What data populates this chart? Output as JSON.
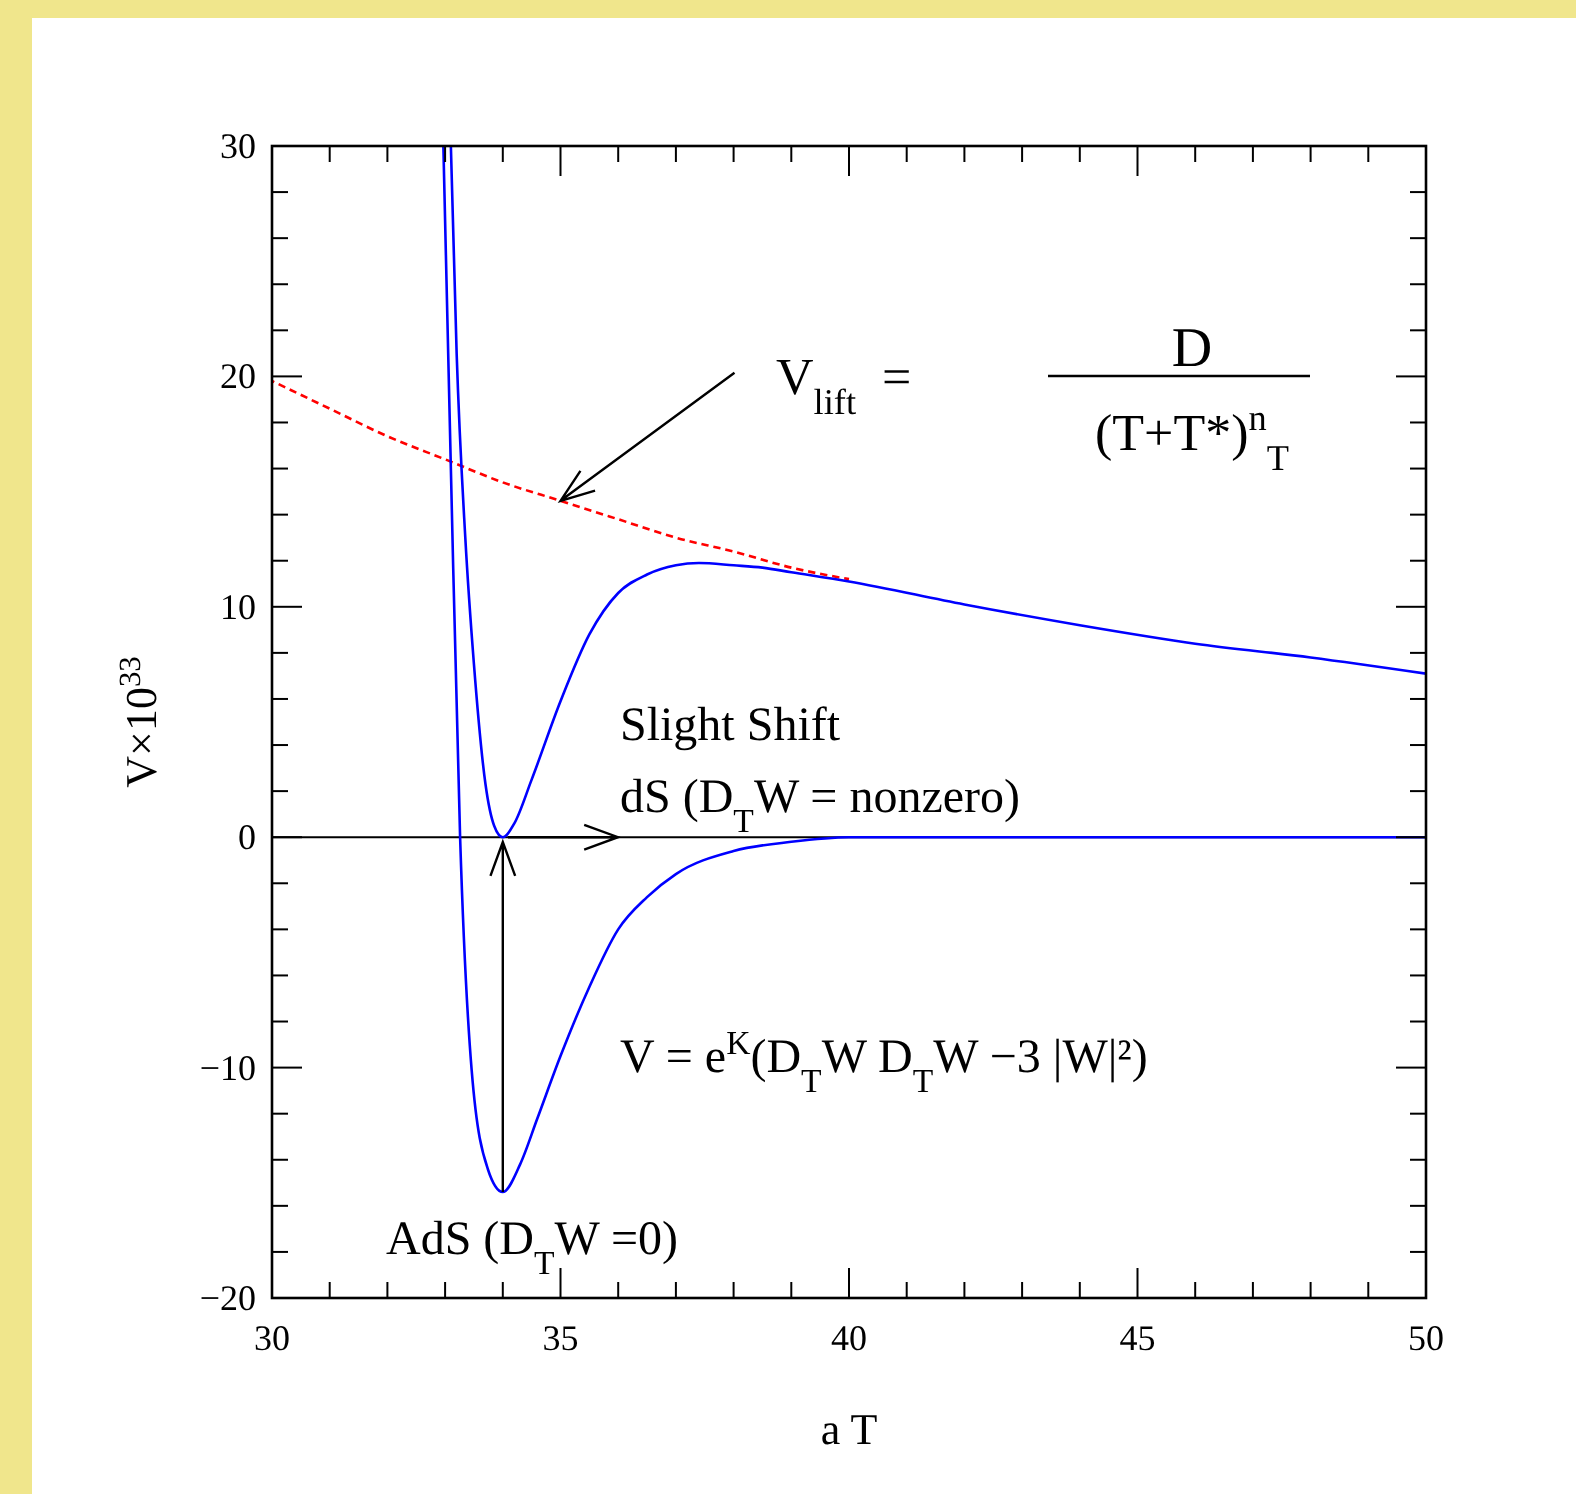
{
  "chart_data": {
    "type": "line",
    "xlabel": "a T",
    "ylabel": "V×10$^{33}$",
    "xlim": [
      30,
      50
    ],
    "ylim": [
      -20,
      30
    ],
    "xticks": [
      30,
      {
        "value": 31,
        "label": null
      },
      {
        "value": 32,
        "label": null
      },
      {
        "value": 33,
        "label": null
      },
      {
        "value": 34,
        "label": null
      },
      35,
      {
        "value": 36,
        "label": null
      },
      {
        "value": 37,
        "label": null
      },
      {
        "value": 38,
        "label": null
      },
      {
        "value": 39,
        "label": null
      },
      40,
      {
        "value": 41,
        "label": null
      },
      {
        "value": 42,
        "label": null
      },
      {
        "value": 43,
        "label": null
      },
      {
        "value": 44,
        "label": null
      },
      45,
      {
        "value": 46,
        "label": null
      },
      {
        "value": 47,
        "label": null
      },
      {
        "value": 48,
        "label": null
      },
      {
        "value": 49,
        "label": null
      },
      50
    ],
    "yticks": [
      -20,
      {
        "value": -18,
        "label": null
      },
      {
        "value": -16,
        "label": null
      },
      {
        "value": -14,
        "label": null
      },
      {
        "value": -12,
        "label": null
      },
      -10,
      {
        "value": -8,
        "label": null
      },
      {
        "value": -6,
        "label": null
      },
      {
        "value": -4,
        "label": null
      },
      {
        "value": -2,
        "label": null
      },
      0,
      {
        "value": 2,
        "label": null
      },
      {
        "value": 4,
        "label": null
      },
      {
        "value": 6,
        "label": null
      },
      {
        "value": 8,
        "label": null
      },
      10,
      {
        "value": 12,
        "label": null
      },
      {
        "value": 14,
        "label": null
      },
      {
        "value": 16,
        "label": null
      },
      {
        "value": 18,
        "label": null
      },
      20,
      {
        "value": 22,
        "label": null
      },
      {
        "value": 24,
        "label": null
      },
      {
        "value": 26,
        "label": null
      },
      {
        "value": 28,
        "label": null
      },
      30
    ],
    "series": [
      {
        "color": "#ff0000",
        "line_style": "dashed",
        "x": [
          30,
          31,
          32,
          33,
          34,
          35,
          36,
          37,
          38,
          39,
          40
        ],
        "values": [
          19.8,
          18.6,
          17.4,
          16.4,
          15.4,
          14.6,
          13.8,
          13.0,
          12.4,
          11.7,
          11.2
        ]
      },
      {
        "color": "#0000ff",
        "line_style": "solid",
        "x": [
          33.1,
          33.2,
          33.35,
          33.5,
          33.7,
          33.85,
          34,
          34.2,
          34.5,
          35,
          35.5,
          36,
          36.5,
          37,
          37.4,
          38,
          38.5,
          39,
          40,
          42,
          44,
          46,
          48,
          50
        ],
        "values": [
          30,
          21,
          13,
          7.5,
          2.3,
          0.5,
          0,
          0.6,
          2.5,
          5.9,
          8.8,
          10.6,
          11.4,
          11.8,
          11.9,
          11.8,
          11.7,
          11.5,
          11.1,
          10.1,
          9.2,
          8.4,
          7.8,
          7.1
        ]
      },
      {
        "color": "#0000ff",
        "line_style": "solid",
        "x": [
          32.97,
          33.1,
          33.26,
          33.46,
          33.74,
          34,
          34.3,
          34.6,
          35,
          35.5,
          36,
          36.5,
          37,
          38,
          39,
          40,
          42,
          50
        ],
        "values": [
          30,
          16,
          0,
          -10.1,
          -14.4,
          -15.4,
          -14.2,
          -12.2,
          -9.5,
          -6.5,
          -4.0,
          -2.6,
          -1.6,
          -0.6,
          -0.2,
          0,
          0,
          0
        ]
      }
    ],
    "ref_lines": [
      {
        "axis": "y",
        "value": 0,
        "color": "#000000"
      }
    ],
    "annotations": [
      {
        "text": "V$_{lift}$  =",
        "x": 35,
        "y": 14.6
      },
      "D",
      "(T+T*)$^{n}$$_{T}$",
      "Slight Shift",
      "dS (D$_{T}$W = nonzero)",
      "V = e$^{K}$(D$_{T}$W D$_{T}$W −3 |W|²)",
      {
        "text": "AdS (D$_{T}$W =0)",
        "x": 34,
        "y": -15.4
      }
    ]
  }
}
